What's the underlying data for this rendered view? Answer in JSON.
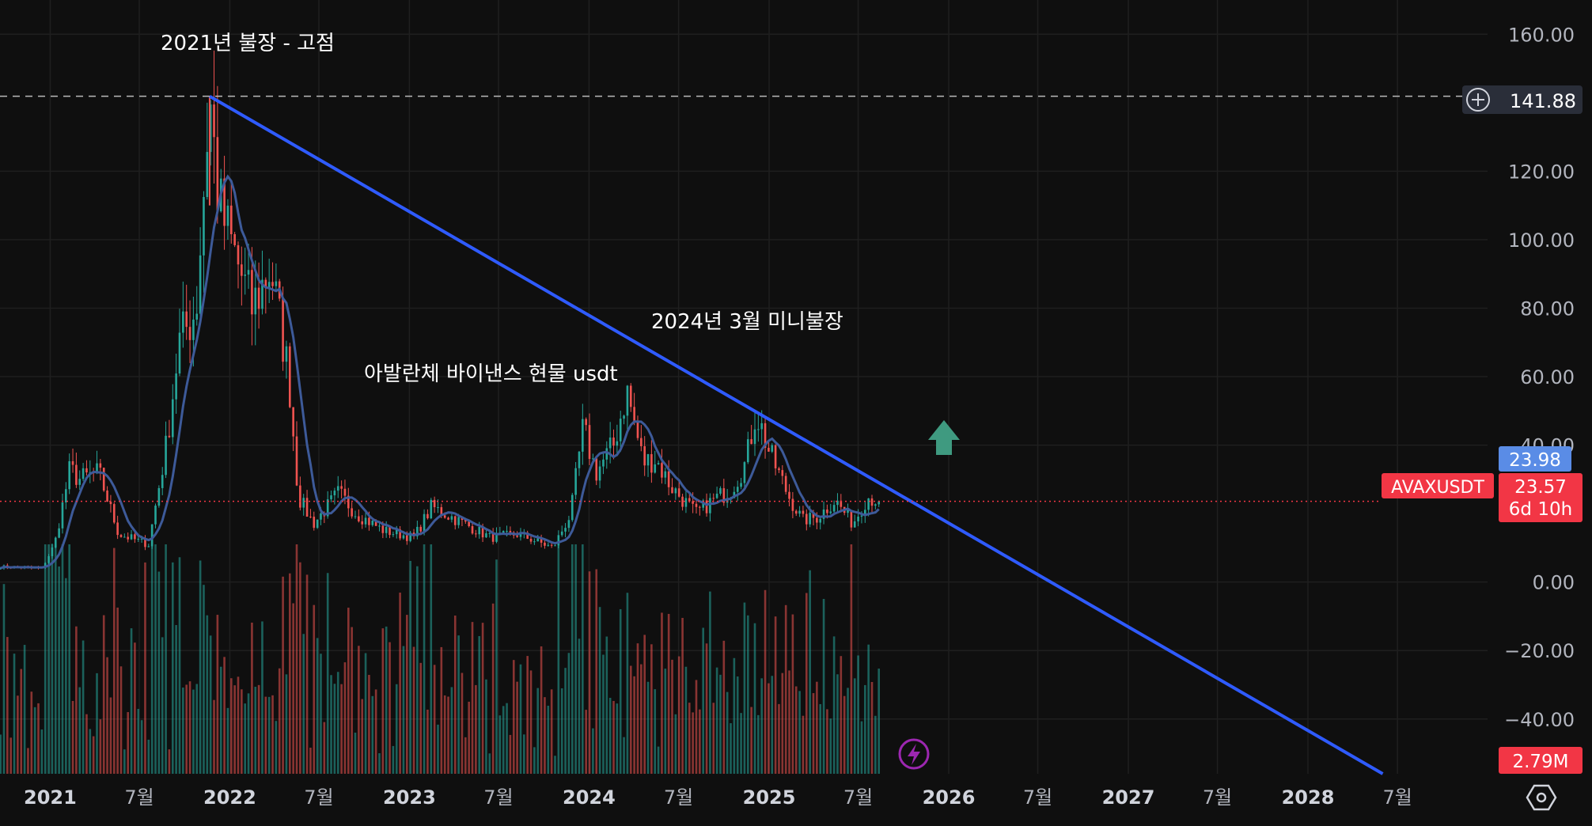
{
  "symbol": "AVAXUSDT",
  "current_price": "23.57",
  "countdown": "6d 10h",
  "marker_price": "23.98",
  "crosshair_price": "141.88",
  "volume_label": "2.79M",
  "annotations": {
    "peak_2021": "2021년 불장 - 고점",
    "title_text": "아발란체 바이낸스 현물 usdt",
    "mini_bull_2024": "2024년 3월 미니불장"
  },
  "icons": {
    "add_alert": "plus-circle-icon",
    "settings": "gear-icon",
    "flash": "lightning-icon",
    "up_arrow": "arrow-up-icon"
  },
  "colors": {
    "background": "#0f0f0f",
    "grid": "#1f1f1f",
    "candle_up": "#26a69a",
    "candle_down": "#ef5350",
    "moving_average": "#3d5a99",
    "trendline": "#2f5bff",
    "price_badge": "#f23645",
    "marker_badge": "#5a8ce6",
    "crosshair_badge": "#2a2e39",
    "arrow": "#3f9a80",
    "flash": "#9c27b0"
  },
  "chart_data": {
    "type": "candlestick",
    "y_axis": {
      "range": [
        -56,
        170
      ],
      "ticks": [
        "160.00",
        "120.00",
        "100.00",
        "80.00",
        "60.00",
        "40.00",
        "0.00",
        "−20.00",
        "−40.00"
      ],
      "tick_values": [
        160,
        120,
        100,
        80,
        60,
        40,
        0,
        -20,
        -40
      ]
    },
    "x_axis": {
      "range": [
        "2020-09-21",
        "2028-12-31"
      ],
      "ticks": [
        {
          "label": "2021",
          "date": "2021-01-01"
        },
        {
          "label": "7월",
          "date": "2021-07-01"
        },
        {
          "label": "2022",
          "date": "2022-01-01"
        },
        {
          "label": "7월",
          "date": "2022-07-01"
        },
        {
          "label": "2023",
          "date": "2023-01-01"
        },
        {
          "label": "7월",
          "date": "2023-07-01"
        },
        {
          "label": "2024",
          "date": "2024-01-01"
        },
        {
          "label": "7월",
          "date": "2024-07-01"
        },
        {
          "label": "2025",
          "date": "2025-01-01"
        },
        {
          "label": "7월",
          "date": "2025-07-01"
        },
        {
          "label": "2026",
          "date": "2026-01-01"
        },
        {
          "label": "7월",
          "date": "2026-07-01"
        },
        {
          "label": "2027",
          "date": "2027-01-01"
        },
        {
          "label": "7월",
          "date": "2027-07-01"
        },
        {
          "label": "2028",
          "date": "2028-01-01"
        },
        {
          "label": "7월",
          "date": "2028-07-01"
        }
      ]
    },
    "price_anchors": [
      [
        "2020-09-22",
        4.5
      ],
      [
        "2020-12-15",
        4
      ],
      [
        "2021-01-10",
        11
      ],
      [
        "2021-02-10",
        33
      ],
      [
        "2021-03-01",
        30
      ],
      [
        "2021-04-10",
        32
      ],
      [
        "2021-05-20",
        14
      ],
      [
        "2021-07-20",
        11
      ],
      [
        "2021-08-25",
        40
      ],
      [
        "2021-09-20",
        70
      ],
      [
        "2021-10-25",
        80
      ],
      [
        "2021-11-21",
        141.88
      ],
      [
        "2021-12-10",
        110
      ],
      [
        "2022-01-01",
        100
      ],
      [
        "2022-02-15",
        80
      ],
      [
        "2022-03-25",
        92
      ],
      [
        "2022-05-01",
        60
      ],
      [
        "2022-05-20",
        25
      ],
      [
        "2022-06-20",
        17
      ],
      [
        "2022-08-10",
        26
      ],
      [
        "2022-09-15",
        20
      ],
      [
        "2022-11-10",
        15
      ],
      [
        "2023-01-10",
        13
      ],
      [
        "2023-02-15",
        22
      ],
      [
        "2023-04-10",
        18
      ],
      [
        "2023-06-15",
        13
      ],
      [
        "2023-08-10",
        14
      ],
      [
        "2023-10-20",
        10
      ],
      [
        "2023-11-25",
        20
      ],
      [
        "2023-12-20",
        45
      ],
      [
        "2024-01-15",
        32
      ],
      [
        "2024-02-20",
        40
      ],
      [
        "2024-03-18",
        56
      ],
      [
        "2024-04-20",
        35
      ],
      [
        "2024-05-15",
        36
      ],
      [
        "2024-06-15",
        28
      ],
      [
        "2024-08-05",
        20
      ],
      [
        "2024-09-10",
        24
      ],
      [
        "2024-10-15",
        27
      ],
      [
        "2024-11-15",
        35
      ],
      [
        "2024-12-05",
        50
      ],
      [
        "2025-01-01",
        38
      ],
      [
        "2025-02-10",
        25
      ],
      [
        "2025-03-10",
        18
      ],
      [
        "2025-04-10",
        19
      ],
      [
        "2025-05-15",
        24
      ],
      [
        "2025-06-20",
        17
      ],
      [
        "2025-07-20",
        25
      ],
      [
        "2025-08-15",
        23.57
      ]
    ],
    "trendline": {
      "start": [
        "2021-11-21",
        141.88
      ],
      "end": [
        "2028-06-01",
        -56
      ]
    },
    "current_price": 23.57,
    "marker_price": 23.98,
    "crosshair_price": 141.88
  }
}
